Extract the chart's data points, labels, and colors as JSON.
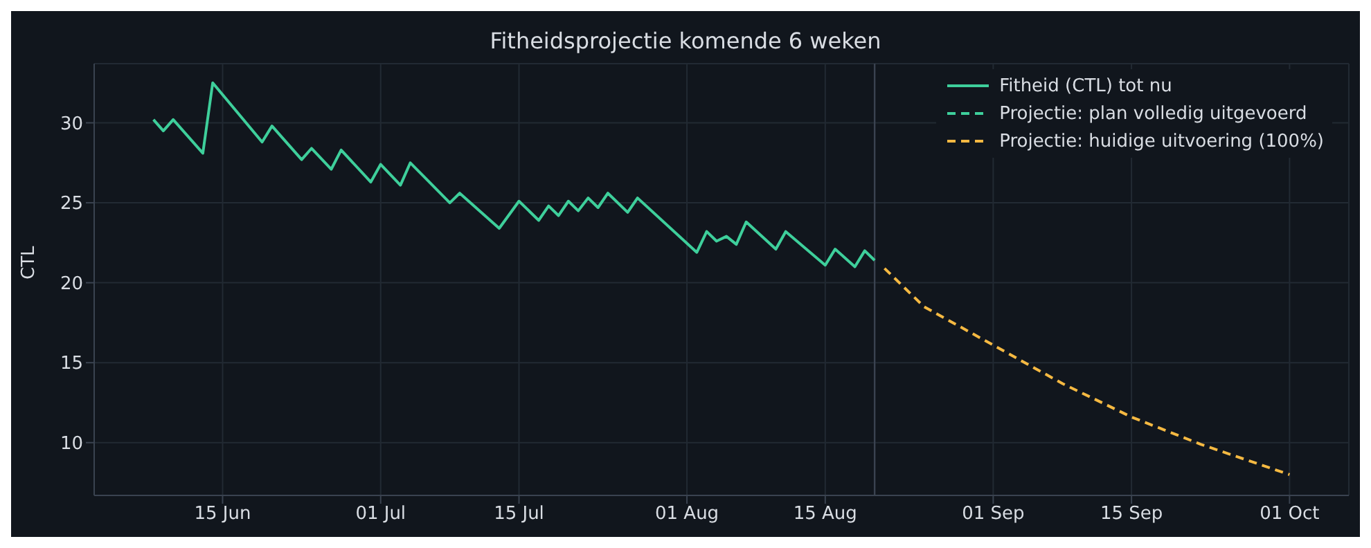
{
  "chart_data": {
    "type": "line",
    "title": "Fitheidsprojectie komende 6 weken",
    "ylabel": "CTL",
    "xlim": [
      "--06-02",
      "--10-07"
    ],
    "xticks": [
      {
        "value": "--06-15",
        "label": "15 Jun"
      },
      {
        "value": "--07-01",
        "label": "01 Jul"
      },
      {
        "value": "--07-15",
        "label": "15 Jul"
      },
      {
        "value": "--08-01",
        "label": "01 Aug"
      },
      {
        "value": "--08-15",
        "label": "15 Aug"
      },
      {
        "value": "--09-01",
        "label": "01 Sep"
      },
      {
        "value": "--09-15",
        "label": "15 Sep"
      },
      {
        "value": "--10-01",
        "label": "01 Oct"
      }
    ],
    "ylim": [
      6.7,
      33.7
    ],
    "yticks": [
      10,
      15,
      20,
      25,
      30
    ],
    "grid": true,
    "legend": "top right",
    "marker": "none",
    "ref_lines": [
      {
        "axis": "x",
        "value": "--08-20",
        "label": null,
        "color": "#3a4350"
      }
    ],
    "series": [
      {
        "name": "Fitheid (CTL) tot nu",
        "color": "#3ecf9b",
        "line_style": "solid",
        "x": [
          "--06-08",
          "--06-09",
          "--06-10",
          "--06-13",
          "--06-14",
          "--06-19",
          "--06-20",
          "--06-23",
          "--06-24",
          "--06-26",
          "--06-27",
          "--06-30",
          "--07-01",
          "--07-03",
          "--07-04",
          "--07-08",
          "--07-09",
          "--07-13",
          "--07-15",
          "--07-17",
          "--07-18",
          "--07-19",
          "--07-20",
          "--07-21",
          "--07-22",
          "--07-23",
          "--07-24",
          "--07-26",
          "--07-27",
          "--08-02",
          "--08-03",
          "--08-04",
          "--08-05",
          "--08-06",
          "--08-07",
          "--08-10",
          "--08-11",
          "--08-15",
          "--08-16",
          "--08-18",
          "--08-19",
          "--08-20"
        ],
        "values": [
          30.2,
          29.5,
          30.2,
          28.1,
          32.5,
          28.8,
          29.8,
          27.7,
          28.4,
          27.1,
          28.3,
          26.3,
          27.4,
          26.1,
          27.5,
          25.0,
          25.6,
          23.4,
          25.1,
          23.9,
          24.8,
          24.2,
          25.1,
          24.5,
          25.3,
          24.7,
          25.6,
          24.4,
          25.3,
          21.9,
          23.2,
          22.6,
          22.9,
          22.4,
          23.8,
          22.1,
          23.2,
          21.1,
          22.1,
          21.0,
          22.0,
          21.4
        ]
      },
      {
        "name": "Projectie: plan volledig uitgevoerd",
        "color": "#3ecf9b",
        "line_style": "dashed"
      },
      {
        "name": "Projectie: huidige uitvoering (100%)",
        "color": "#f5b942",
        "line_style": "dashed",
        "x": [
          "--08-21",
          "--08-25",
          "--09-01",
          "--09-08",
          "--09-15",
          "--09-22",
          "--10-01"
        ],
        "values": [
          20.9,
          18.5,
          16.1,
          13.7,
          11.6,
          9.9,
          8.0
        ]
      }
    ]
  }
}
